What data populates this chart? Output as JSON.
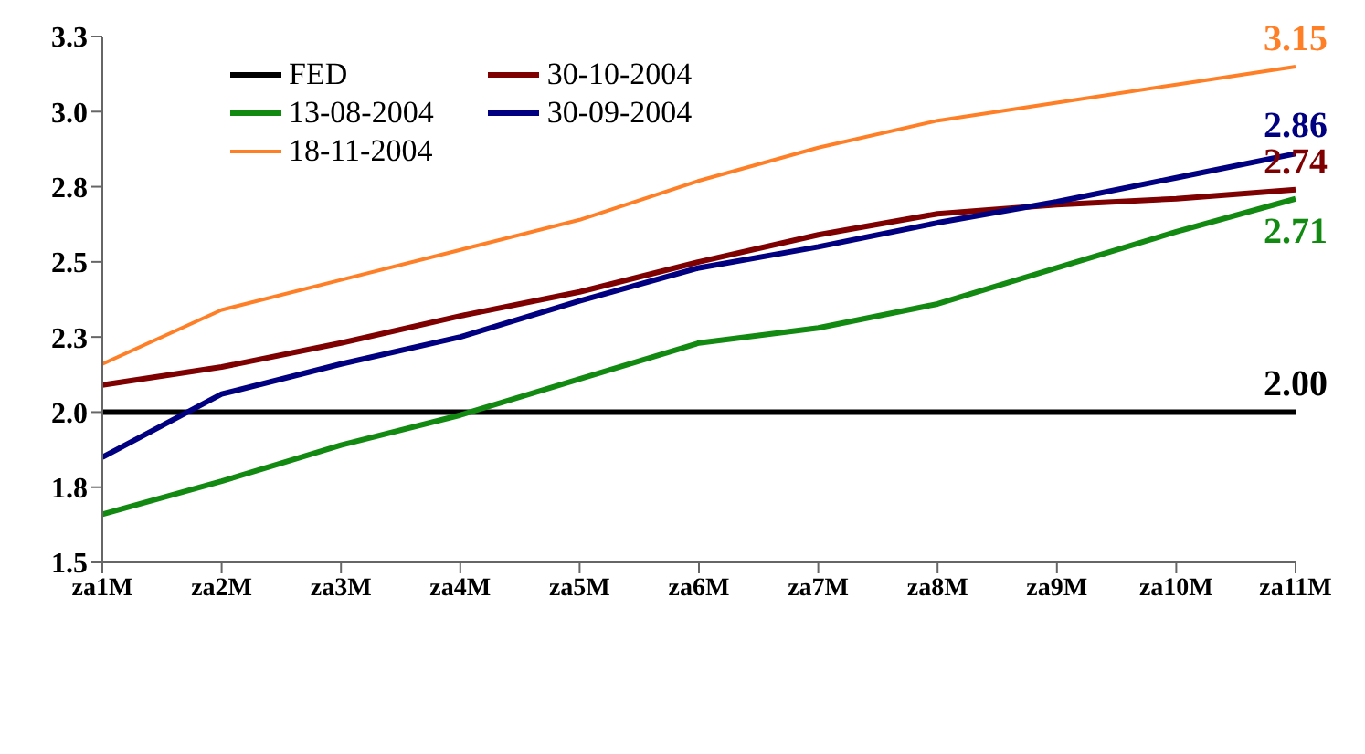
{
  "chart_data": {
    "type": "line",
    "categories": [
      "za1M",
      "za2M",
      "za3M",
      "za4M",
      "za5M",
      "za6M",
      "za7M",
      "za8M",
      "za9M",
      "za10M",
      "za11M"
    ],
    "series": [
      {
        "name": "FED",
        "color": "#000000",
        "values": [
          2.0,
          2.0,
          2.0,
          2.0,
          2.0,
          2.0,
          2.0,
          2.0,
          2.0,
          2.0,
          2.0
        ],
        "value_labels": [
          null,
          null,
          null,
          null,
          null,
          null,
          null,
          null,
          null,
          null,
          "2.00"
        ]
      },
      {
        "name": "13-08-2004",
        "color": "#128a12",
        "values": [
          1.66,
          1.77,
          1.89,
          1.99,
          2.11,
          2.23,
          2.28,
          2.36,
          2.48,
          2.6,
          2.71
        ],
        "value_labels": [
          null,
          null,
          null,
          null,
          null,
          null,
          null,
          null,
          null,
          null,
          "2.71"
        ]
      },
      {
        "name": "18-11-2004",
        "color": "#ff7f27",
        "values": [
          2.16,
          2.34,
          2.44,
          2.54,
          2.64,
          2.77,
          2.88,
          2.97,
          3.03,
          3.09,
          3.15
        ],
        "value_labels": [
          null,
          null,
          null,
          null,
          null,
          null,
          null,
          null,
          null,
          null,
          "3.15"
        ]
      },
      {
        "name": "30-10-2004",
        "color": "#7f0000",
        "values": [
          2.09,
          2.15,
          2.23,
          2.32,
          2.4,
          2.5,
          2.59,
          2.66,
          2.69,
          2.71,
          2.74
        ],
        "value_labels": [
          null,
          null,
          null,
          null,
          null,
          null,
          null,
          null,
          null,
          null,
          "2.74"
        ]
      },
      {
        "name": "30-09-2004",
        "color": "#000080",
        "values": [
          1.85,
          2.06,
          2.16,
          2.25,
          2.37,
          2.48,
          2.55,
          2.63,
          2.7,
          2.78,
          2.86
        ],
        "value_labels": [
          null,
          null,
          null,
          null,
          null,
          null,
          null,
          null,
          null,
          null,
          "2.86"
        ]
      }
    ],
    "ylim": [
      1.5,
      3.25
    ],
    "yticks": [
      1.5,
      {
        "value": 1.75,
        "label": "1.8"
      },
      {
        "value": 2,
        "label": "2.0"
      },
      {
        "value": 2.25,
        "label": "2.3"
      },
      2.5,
      {
        "value": 2.75,
        "label": "2.8"
      },
      {
        "value": 3,
        "label": "3.0"
      },
      {
        "value": 3.25,
        "label": "3.3"
      }
    ],
    "legend": "top left",
    "grid": false,
    "marker": "none",
    "line_style": "solid"
  }
}
